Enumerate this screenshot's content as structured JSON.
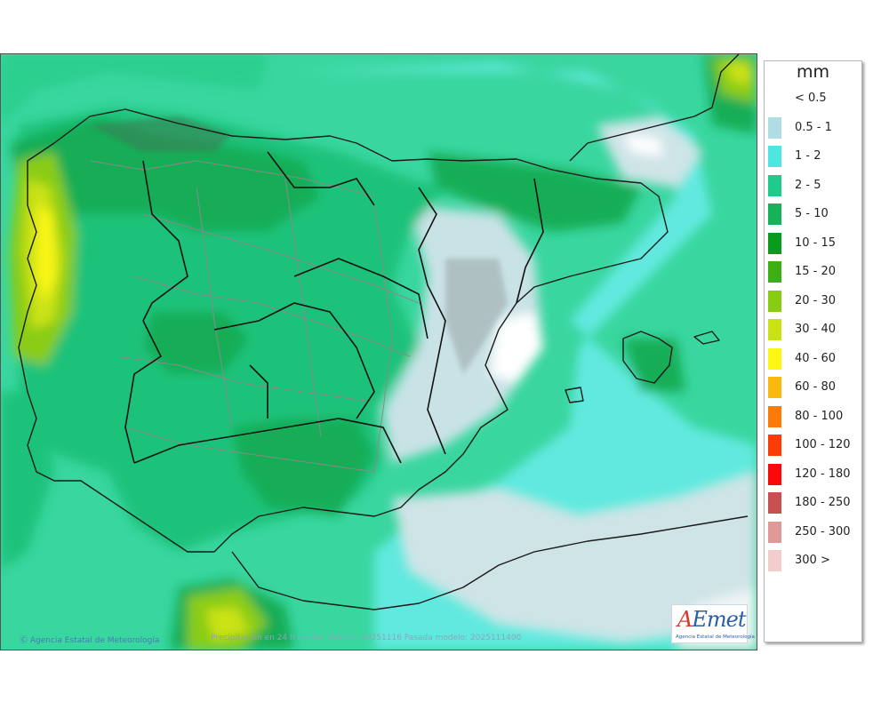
{
  "legend": {
    "unit": "mm",
    "items": [
      {
        "label": "< 0.5",
        "color": "#ffffff"
      },
      {
        "label": "0.5 - 1",
        "color": "#b0dde3"
      },
      {
        "label": "1 - 2",
        "color": "#4de6e0"
      },
      {
        "label": "2 - 5",
        "color": "#1ecb8c"
      },
      {
        "label": "5 - 10",
        "color": "#15b25a"
      },
      {
        "label": "10 - 15",
        "color": "#0a9a1e"
      },
      {
        "label": "15 - 20",
        "color": "#3eaf12"
      },
      {
        "label": "20 - 30",
        "color": "#8acc12"
      },
      {
        "label": "30 - 40",
        "color": "#cbe212"
      },
      {
        "label": "40 - 60",
        "color": "#fbf614"
      },
      {
        "label": "60 - 80",
        "color": "#fbb80f"
      },
      {
        "label": "80 - 100",
        "color": "#fb7a0a"
      },
      {
        "label": "100 - 120",
        "color": "#fb3c08"
      },
      {
        "label": "120 - 180",
        "color": "#fb0808"
      },
      {
        "label": "180 - 250",
        "color": "#c85050"
      },
      {
        "label": "250 - 300",
        "color": "#e09898"
      },
      {
        "label": "300 >",
        "color": "#f3cccc"
      }
    ]
  },
  "footer": {
    "credit": "Ⓒ Agencia Estatal de Meteorología",
    "caption": "Precipitación en 24 h media. Validez: 20251116 Pasada modelo: 2025111400"
  },
  "logo": {
    "word_a": "A",
    "word_rest": "Emet",
    "subtitle": "Agencia Estatal de Meteorología"
  }
}
